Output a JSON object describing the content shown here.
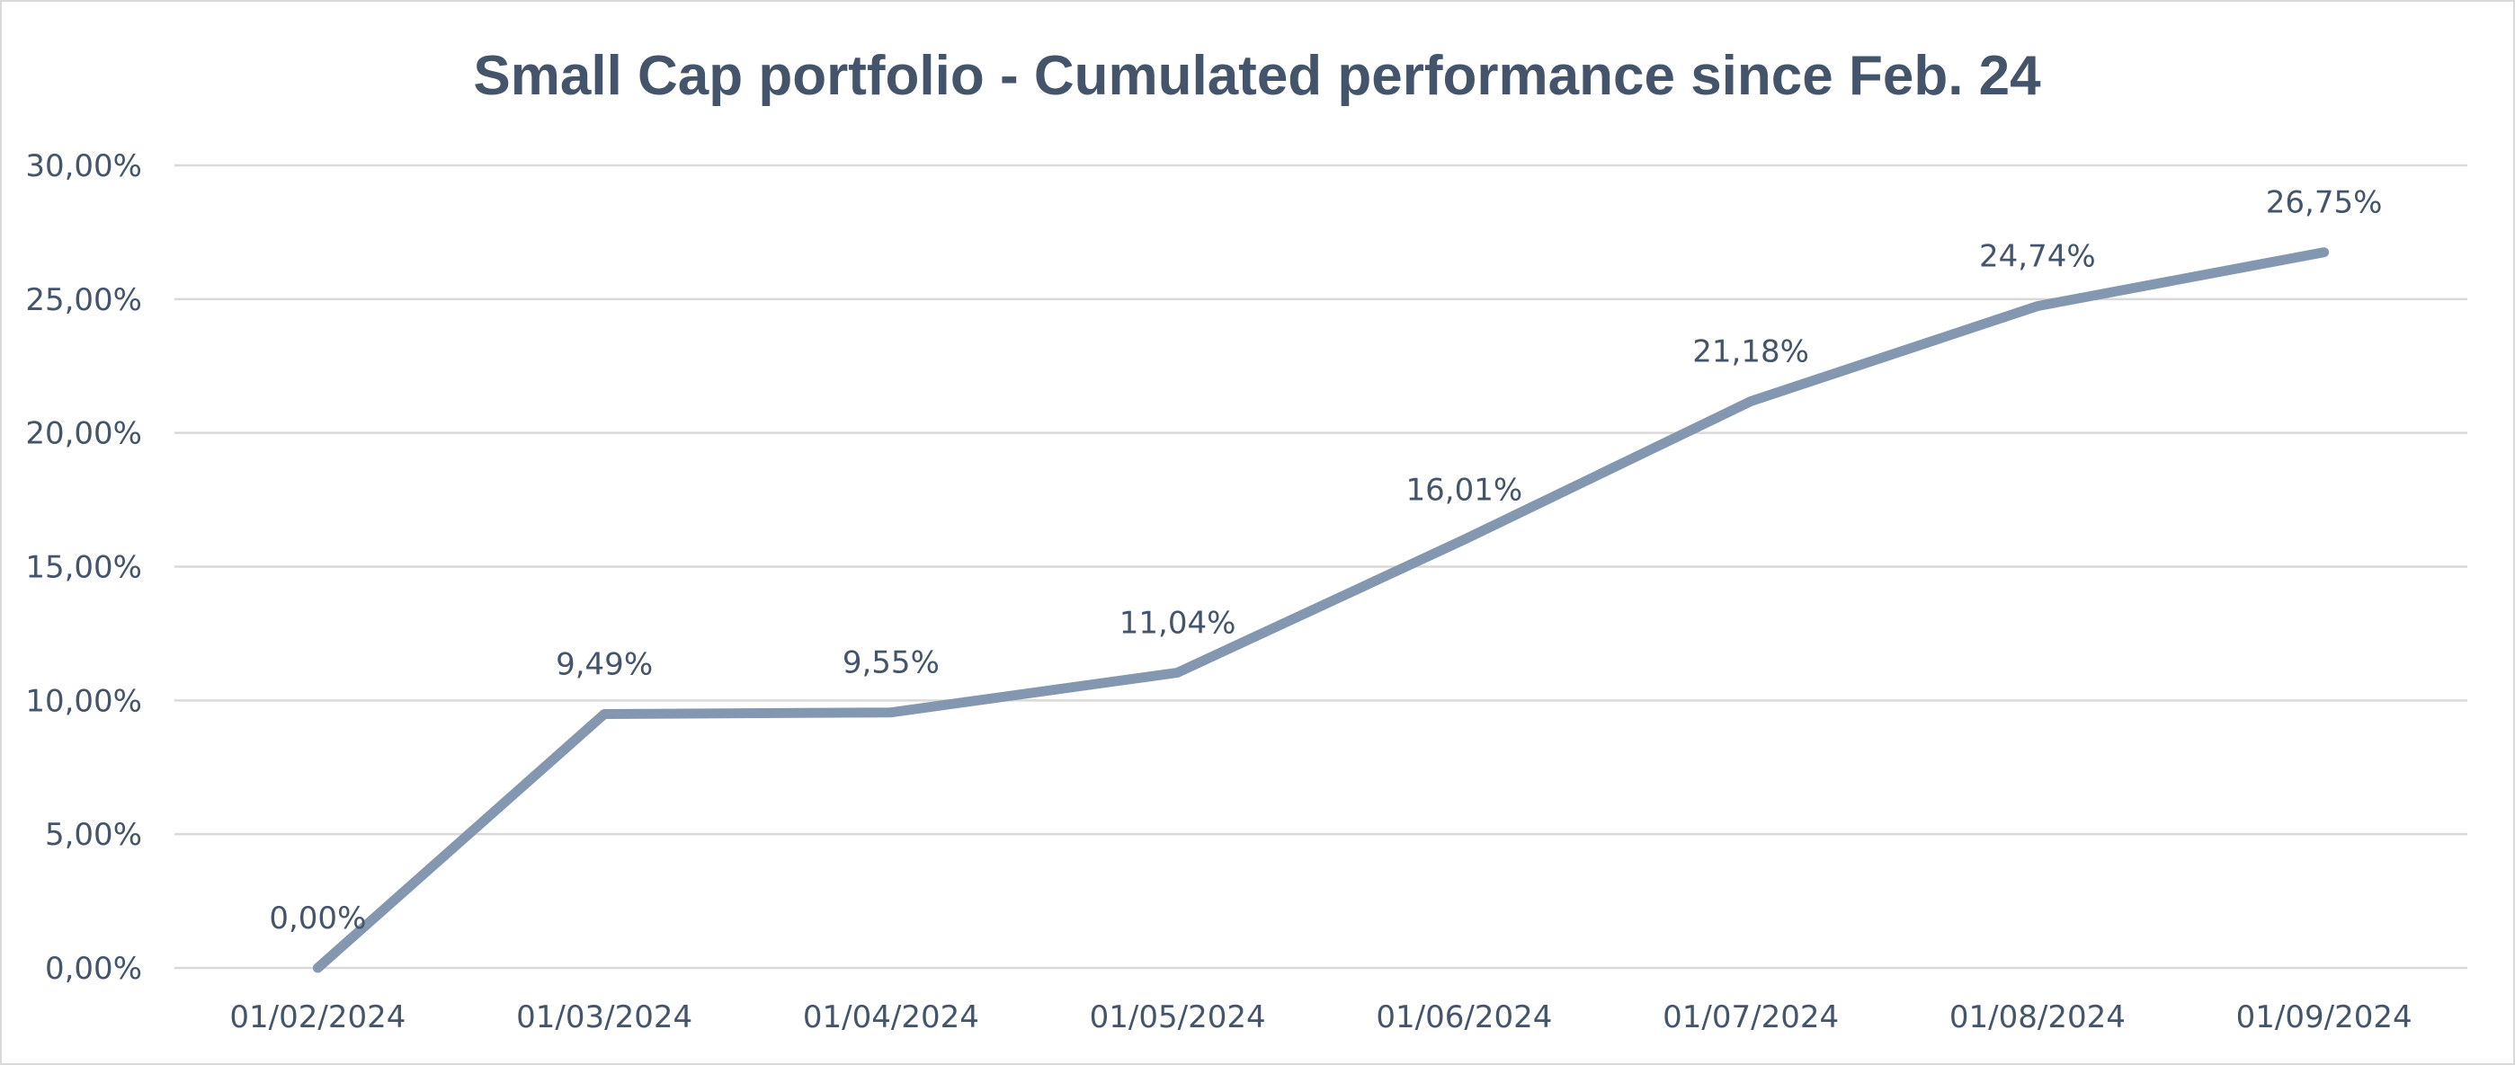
{
  "chart_data": {
    "type": "line",
    "title": "Small Cap portfolio - Cumulated performance since Feb. 24",
    "xlabel": "",
    "ylabel": "",
    "categories": [
      "01/02/2024",
      "01/03/2024",
      "01/04/2024",
      "01/05/2024",
      "01/06/2024",
      "01/07/2024",
      "01/08/2024",
      "01/09/2024"
    ],
    "series": [
      {
        "values": [
          0.0,
          9.49,
          9.55,
          11.04,
          16.01,
          21.18,
          24.74,
          26.75
        ],
        "data_labels": [
          "0,00%",
          "9,49%",
          "9,55%",
          "11,04%",
          "16,01%",
          "21,18%",
          "24,74%",
          "26,75%"
        ],
        "color": "#8497b0"
      }
    ],
    "ylim": [
      0,
      30
    ],
    "yticks": [
      0,
      5,
      10,
      15,
      20,
      25,
      30
    ],
    "ytick_labels": [
      "0,00%",
      "5,00%",
      "10,00%",
      "15,00%",
      "20,00%",
      "25,00%",
      "30,00%"
    ],
    "grid": true,
    "legend": "none"
  }
}
